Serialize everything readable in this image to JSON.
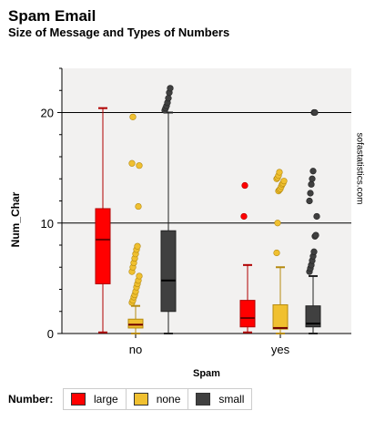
{
  "title": "Spam Email",
  "subtitle": "Size of Message and Types of Numbers",
  "watermark": "sofastatistics.com",
  "legend": {
    "title": "Number:",
    "items": [
      {
        "label": "large",
        "color": "#ff0000"
      },
      {
        "label": "none",
        "color": "#f0c030"
      },
      {
        "label": "small",
        "color": "#404040"
      }
    ]
  },
  "chart_data": {
    "type": "boxplot",
    "xlabel": "Spam",
    "ylabel": "Num_Char",
    "categories": [
      "no",
      "yes"
    ],
    "ylim": [
      0,
      24
    ],
    "yticks": [
      0,
      10,
      20
    ],
    "grid": true,
    "series": [
      {
        "name": "large",
        "color": "#ff0000",
        "boxes": [
          {
            "category": "no",
            "whisker_low": 0.1,
            "q1": 4.5,
            "median": 8.5,
            "q3": 11.3,
            "whisker_high": 20.4,
            "outliers": []
          },
          {
            "category": "yes",
            "whisker_low": 0.1,
            "q1": 0.6,
            "median": 1.4,
            "q3": 3.0,
            "whisker_high": 6.2,
            "outliers": [
              10.6,
              13.4
            ]
          }
        ]
      },
      {
        "name": "none",
        "color": "#f0c030",
        "boxes": [
          {
            "category": "no",
            "whisker_low": 0.0,
            "q1": 0.5,
            "median": 0.8,
            "q3": 1.3,
            "whisker_high": 2.5,
            "outliers": [
              2.8,
              3.0,
              3.3,
              3.5,
              3.8,
              4.2,
              4.5,
              4.8,
              5.2,
              5.6,
              6.0,
              6.4,
              6.8,
              7.2,
              7.6,
              7.9,
              11.5,
              15.2,
              15.4,
              19.6
            ]
          },
          {
            "category": "yes",
            "whisker_low": 0.0,
            "q1": 0.4,
            "median": 0.5,
            "q3": 2.6,
            "whisker_high": 6.0,
            "outliers": [
              7.3,
              10.0,
              12.9,
              13.0,
              13.1,
              13.3,
              13.5,
              13.6,
              13.8,
              14.0,
              14.1,
              14.3,
              14.6
            ]
          }
        ]
      },
      {
        "name": "small",
        "color": "#404040",
        "boxes": [
          {
            "category": "no",
            "whisker_low": 0.0,
            "q1": 2.0,
            "median": 4.8,
            "q3": 9.3,
            "whisker_high": 20.0,
            "outliers": [
              20.2,
              20.4,
              20.6,
              20.9,
              21.3,
              21.8,
              22.2
            ]
          },
          {
            "category": "yes",
            "whisker_low": 0.0,
            "q1": 0.6,
            "median": 0.9,
            "q3": 2.5,
            "whisker_high": 5.2,
            "outliers": [
              5.6,
              5.9,
              6.2,
              6.6,
              7.0,
              7.4,
              8.8,
              8.9,
              10.6,
              12.0,
              12.7,
              13.5,
              14.0,
              14.7,
              20.0,
              20.0
            ]
          }
        ]
      }
    ]
  }
}
